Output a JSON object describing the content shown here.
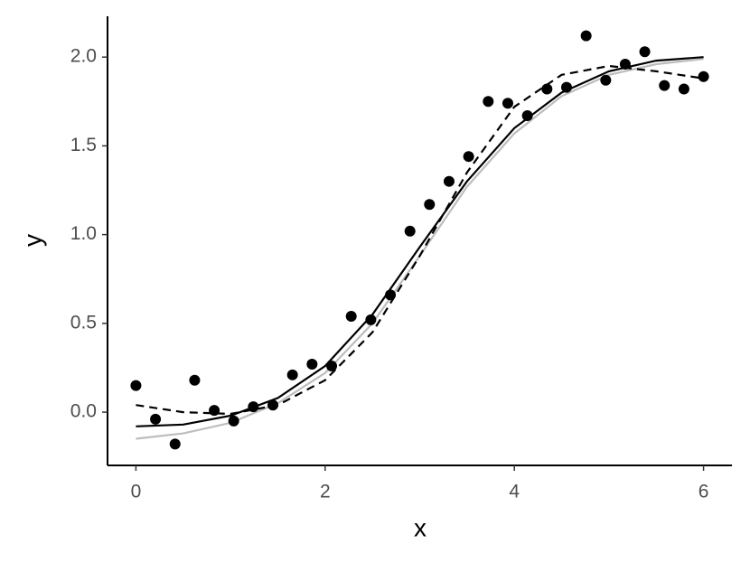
{
  "chart_data": {
    "type": "scatter",
    "x_label": "x",
    "y_label": "y",
    "x": [
      0,
      0.207,
      0.414,
      0.621,
      0.828,
      1.034,
      1.241,
      1.448,
      1.655,
      1.862,
      2.069,
      2.276,
      2.483,
      2.69,
      2.897,
      3.103,
      3.31,
      3.517,
      3.724,
      3.931,
      4.138,
      4.345,
      4.552,
      4.759,
      4.966,
      5.172,
      5.379,
      5.586,
      5.793,
      6
    ],
    "values": [
      0.15,
      -0.04,
      -0.18,
      0.18,
      0.01,
      -0.05,
      0.03,
      0.04,
      0.21,
      0.27,
      0.26,
      0.54,
      0.52,
      0.66,
      1.02,
      1.17,
      1.3,
      1.44,
      1.75,
      1.74,
      1.67,
      1.82,
      1.83,
      2.12,
      1.87,
      1.96,
      2.03,
      1.84,
      1.82,
      1.89
    ],
    "color": "#000000",
    "lines": [
      {
        "color": "#bdbdbd",
        "dash": false,
        "x": [
          0,
          0.5,
          1,
          1.5,
          2,
          2.5,
          3,
          3.5,
          4,
          4.5,
          5,
          5.5,
          6
        ],
        "values": [
          -0.15,
          -0.12,
          -0.06,
          0.05,
          0.22,
          0.5,
          0.88,
          1.27,
          1.57,
          1.78,
          1.9,
          1.96,
          1.99
        ]
      },
      {
        "color": "#000000",
        "dash": false,
        "x": [
          0,
          0.5,
          1,
          1.5,
          2,
          2.5,
          3,
          3.5,
          4,
          4.5,
          5,
          5.5,
          6
        ],
        "values": [
          -0.08,
          -0.07,
          -0.02,
          0.08,
          0.26,
          0.55,
          0.93,
          1.3,
          1.6,
          1.8,
          1.92,
          1.98,
          2.0
        ]
      },
      {
        "color": "#000000",
        "dash": true,
        "x": [
          0,
          0.5,
          1,
          1.5,
          2,
          2.5,
          3,
          3.5,
          4,
          4.5,
          5,
          5.5,
          6
        ],
        "values": [
          0.04,
          0.0,
          -0.01,
          0.04,
          0.18,
          0.45,
          0.88,
          1.35,
          1.72,
          1.9,
          1.95,
          1.92,
          1.88
        ]
      }
    ],
    "xlim": [
      -0.3,
      6.3
    ],
    "ylim": [
      -0.3,
      2.23
    ],
    "xticks": [
      0,
      2,
      4,
      6
    ],
    "yticks": [
      {
        "value": 0,
        "label": "0.0"
      },
      {
        "value": 0.5,
        "label": "0.5"
      },
      {
        "value": 1,
        "label": "1.0"
      },
      {
        "value": 1.5,
        "label": "1.5"
      },
      {
        "value": 2,
        "label": "2.0"
      }
    ]
  }
}
